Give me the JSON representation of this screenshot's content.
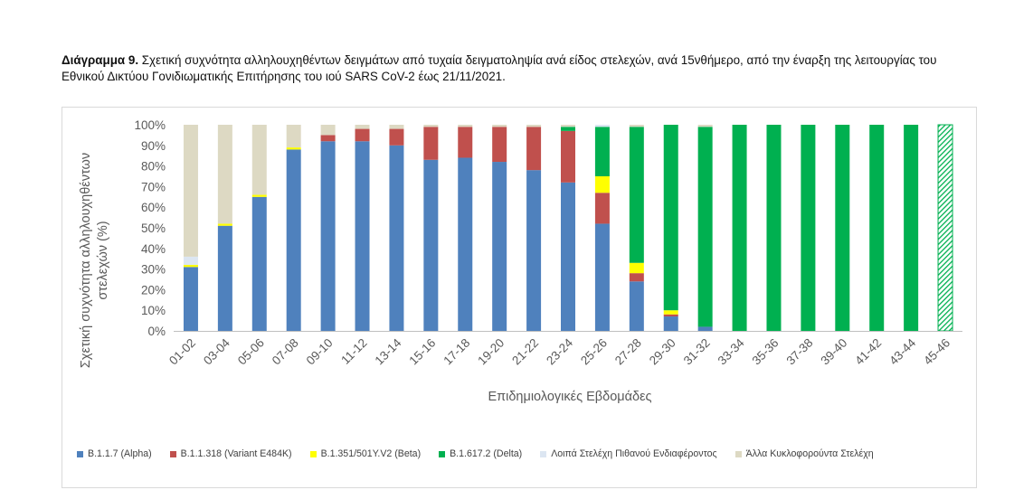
{
  "caption": {
    "bold": "Διάγραμμα 9.",
    "text": " Σχετική συχνότητα αλληλουχηθέντων δειγμάτων από τυχαία δειγματοληψία ανά είδος στελεχών, ανά 15νθήμερο, από την έναρξη της λειτουργίας του Εθνικού Δικτύου Γονιδιωματικής Επιτήρησης του ιού SARS CoV-2 έως 21/11/2021."
  },
  "colors": {
    "alpha": "#4f81bd",
    "e484k": "#c0504d",
    "beta": "#ffff00",
    "delta": "#00b050",
    "other_interest": "#dce6f2",
    "other_circulating": "#ddd9c3"
  },
  "chart_data": {
    "type": "bar",
    "stacked": true,
    "xlabel": "Επιδημιολογικές Εβδομάδες",
    "ylabel": "Σχετική συχνότητα αλληλουχηθέντων στελεχών (%)",
    "ylim": [
      0,
      100
    ],
    "yticks": [
      "0%",
      "10%",
      "20%",
      "30%",
      "40%",
      "50%",
      "60%",
      "70%",
      "80%",
      "90%",
      "100%"
    ],
    "grid": false,
    "legend_position": "bottom",
    "categories": [
      "01-02",
      "03-04",
      "05-06",
      "07-08",
      "09-10",
      "11-12",
      "13-14",
      "15-16",
      "17-18",
      "19-20",
      "21-22",
      "23-24",
      "25-26",
      "27-28",
      "29-30",
      "31-32",
      "33-34",
      "35-36",
      "37-38",
      "39-40",
      "41-42",
      "43-44",
      "45-46"
    ],
    "hatched_last_category": true,
    "series": [
      {
        "name": "B.1.1.7 (Alpha)",
        "color_key": "alpha",
        "values": [
          31,
          51,
          65,
          88,
          92,
          92,
          90,
          83,
          84,
          82,
          78,
          72,
          52,
          24,
          7,
          2,
          0,
          0,
          0,
          0,
          0,
          0,
          0
        ]
      },
      {
        "name": "B.1.1.318 (Variant E484K)",
        "color_key": "e484k",
        "values": [
          0,
          0,
          0,
          0,
          3,
          6,
          8,
          16,
          15,
          17,
          21,
          25,
          15,
          4,
          1,
          0,
          0,
          0,
          0,
          0,
          0,
          0,
          0
        ]
      },
      {
        "name": "B.1.351/501Y.V2 (Beta)",
        "color_key": "beta",
        "values": [
          1,
          1,
          1,
          1,
          0,
          0,
          0,
          0,
          0,
          0,
          0,
          0,
          8,
          5,
          2,
          0,
          0,
          0,
          0,
          0,
          0,
          0,
          0
        ]
      },
      {
        "name": "B.1.617.2 (Delta)",
        "color_key": "delta",
        "values": [
          0,
          0,
          0,
          0,
          0,
          0,
          0,
          0,
          0,
          0,
          0,
          2,
          24,
          66,
          90,
          97,
          100,
          100,
          100,
          100,
          100,
          100,
          100
        ]
      },
      {
        "name": "Λοιπά Στελέχη Πιθανού Ενδιαφέροντος",
        "color_key": "other_interest",
        "values": [
          4,
          0,
          0,
          0,
          0,
          0,
          0,
          0,
          0,
          0,
          0,
          0,
          1,
          0,
          0,
          0,
          0,
          0,
          0,
          0,
          0,
          0,
          0
        ]
      },
      {
        "name": "Άλλα Κυκλοφορούντα Στελέχη",
        "color_key": "other_circulating",
        "values": [
          64,
          48,
          34,
          11,
          5,
          2,
          2,
          1,
          1,
          1,
          1,
          1,
          0,
          1,
          0,
          1,
          0,
          0,
          0,
          0,
          0,
          0,
          0
        ]
      }
    ]
  }
}
